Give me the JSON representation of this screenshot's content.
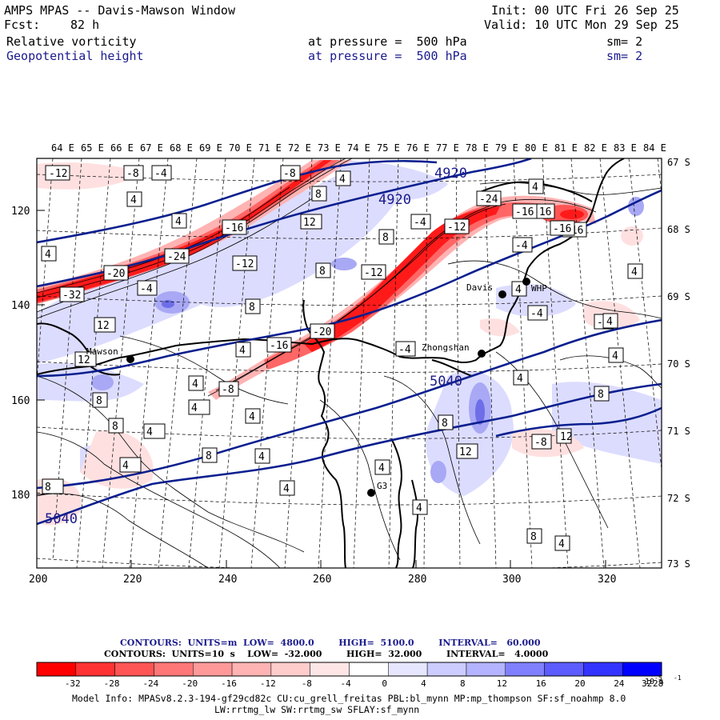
{
  "header": {
    "title": "AMPS MPAS -- Davis-Mawson Window",
    "init": "Init: 00 UTC Fri 26 Sep 25",
    "fcst_label": "Fcst:",
    "fcst_value": "82 h",
    "valid": "Valid: 10 UTC Mon 29 Sep 25",
    "field1_name": "Relative vorticity",
    "field1_level": "at pressure =  500 hPa",
    "field1_sm": "sm= 2",
    "field2_name": "Geopotential height",
    "field2_level": "at pressure =  500 hPa",
    "field2_sm": "sm= 2"
  },
  "map": {
    "top_lon_labels": [
      "64 E",
      "65 E",
      "66 E",
      "67 E",
      "68 E",
      "69 E",
      "70 E",
      "71 E",
      "72 E",
      "73 E",
      "74 E",
      "75 E",
      "76 E",
      "77 E",
      "78 E",
      "79 E",
      "80 E",
      "81 E",
      "82 E",
      "83 E",
      "84 E"
    ],
    "right_lat_labels": [
      "67 S",
      "68 S",
      "69 S",
      "70 S",
      "71 S",
      "72 S",
      "73 S"
    ],
    "bottom_x_labels": [
      "200",
      "220",
      "240",
      "260",
      "280",
      "300",
      "320"
    ],
    "left_y_labels": [
      "120",
      "140",
      "160",
      "180"
    ],
    "stations": [
      {
        "name": "Mawson"
      },
      {
        "name": "Davis"
      },
      {
        "name": "WHP"
      },
      {
        "name": "Zhongshan"
      },
      {
        "name": "G3"
      }
    ],
    "height_labels": [
      "4920",
      "4920",
      "5040",
      "5040"
    ],
    "vorticity_labels": [
      "-12",
      "-8",
      "-4",
      "-8",
      "-16",
      "-20",
      "-24",
      "-32",
      "-16",
      "-12",
      "-24",
      "-16",
      "-16",
      "-4",
      "-12",
      "-4",
      "-12",
      "-20",
      "-16",
      "-8",
      "-4",
      "-4",
      "-4",
      "-8",
      "-4",
      "-16",
      "4",
      "4",
      "4",
      "4",
      "4",
      "8",
      "8",
      "8",
      "12",
      "12",
      "12",
      "12",
      "4",
      "8",
      "8",
      "4",
      "8",
      "4",
      "4",
      "8",
      "4",
      "4",
      "4",
      "4",
      "8",
      "4",
      "12",
      "4",
      "8",
      "4",
      "4",
      "4",
      "4",
      "8",
      "4",
      "4",
      "8"
    ],
    "colors": {
      "height_contour": "#0a1f8f",
      "coastline": "#000000",
      "neg_fill": "#ff0000",
      "pos_fill": "#0000ff"
    }
  },
  "footer": {
    "contours1": "CONTOURS:  UNITS=m  LOW=  4800.0        HIGH=  5100.0        INTERVAL=   60.000",
    "contours2": "CONTOURS:  UNITS=10  s    LOW=  -32.000        HIGH=  32.000        INTERVAL=   4.0000",
    "colorbar_labels": [
      "-32",
      "-28",
      "-24",
      "-20",
      "-16",
      "-12",
      "-8",
      "-4",
      "0",
      "4",
      "8",
      "12",
      "16",
      "20",
      "24",
      "28",
      "32"
    ],
    "colorbar_unit": "10   s",
    "colorbar_colors": [
      "#ff0000",
      "#ff3333",
      "#ff5555",
      "#ff7777",
      "#ff9999",
      "#ffb3b3",
      "#ffcccc",
      "#ffe6e6",
      "#ffffff",
      "#ffffff",
      "#e6e6ff",
      "#ccccff",
      "#b3b3ff",
      "#8080ff",
      "#5c5cff",
      "#3333ff",
      "#0000ff"
    ],
    "model_info1": "Model Info: MPASv8.2.3-194-gf29cd82c CU:cu_grell_freitas PBL:bl_mynn MP:mp_thompson SF:sf_noahmp 8.0",
    "model_info2": "LW:rrtmg_lw SW:rrtmg_sw SFLAY:sf_mynn"
  }
}
